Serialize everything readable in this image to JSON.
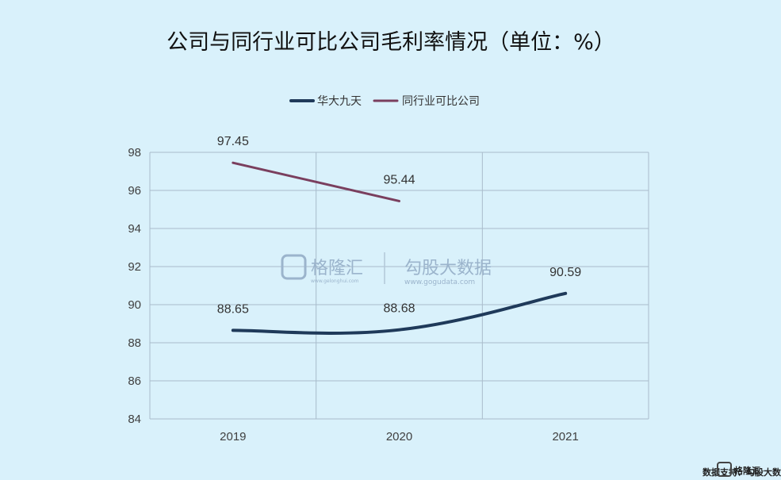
{
  "chart_data": {
    "type": "line",
    "title": "公司与同行业可比公司毛利率情况（单位：%）",
    "categories": [
      "2019",
      "2020",
      "2021"
    ],
    "series": [
      {
        "name": "华大九天",
        "values": [
          88.65,
          88.68,
          90.59
        ],
        "color": "#1f3a5a"
      },
      {
        "name": "同行业可比公司",
        "values": [
          97.45,
          95.44,
          null
        ],
        "color": "#7a3f5e"
      }
    ],
    "data_labels": [
      "88.65",
      "88.68",
      "90.59",
      "97.45",
      "95.44"
    ],
    "ylim": [
      84,
      98
    ],
    "yticks": [
      84,
      86,
      88,
      90,
      92,
      94,
      96,
      98
    ],
    "grid": true,
    "legend_position": "top-center",
    "smooth": true
  },
  "watermark": {
    "brand": "格隆汇",
    "brand_sub": "www.gelonghui.com",
    "partner": "勾股大数据",
    "partner_sub": "www.gogudata.com"
  },
  "footer": {
    "source": "数据支持：勾股大数据",
    "logo_text": "格隆汇"
  },
  "colors": {
    "background": "#d9f1fb",
    "grid": "#a9bccb"
  }
}
